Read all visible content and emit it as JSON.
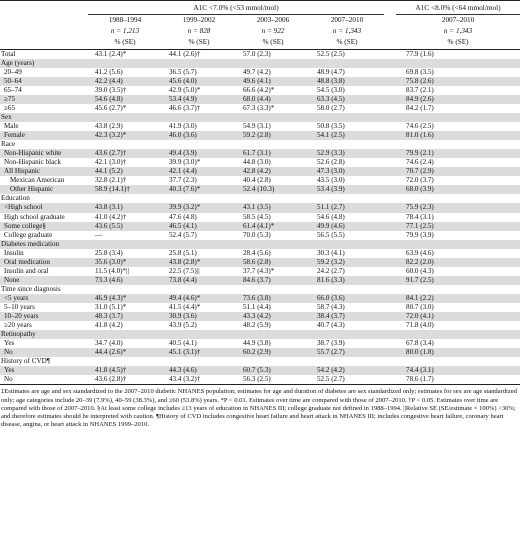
{
  "header": {
    "group1": "A1C <7.0% (<53 mmol/mol)",
    "group2": "A1C <8.0% (<64 mmol/mol)",
    "periods": [
      "1988–1994",
      "1999–2002",
      "2003–2006",
      "2007–2010",
      "2007–2010"
    ],
    "ns": [
      "n = 1,213",
      "n = 828",
      "n = 922",
      "n = 1,343",
      "n = 1,343"
    ],
    "unit": "% (SE)"
  },
  "rows": [
    {
      "type": "data",
      "label": "Total",
      "indent": 0,
      "shade": false,
      "v": [
        "43.1 (2.4)*",
        "44.1 (2.6)†",
        "57.0 (2.3)",
        "52.5 (2.5)",
        "77.9 (1.6)"
      ]
    },
    {
      "type": "section",
      "label": "Age (years)",
      "shade": true
    },
    {
      "type": "data",
      "label": "20–49",
      "indent": 1,
      "shade": false,
      "v": [
        "41.2 (5.6)",
        "36.5 (5.7)",
        "49.7 (4.2)",
        "48.9 (4.7)",
        "69.8 (3.5)"
      ]
    },
    {
      "type": "data",
      "label": "50–64",
      "indent": 1,
      "shade": true,
      "v": [
        "42.2 (4.4)",
        "45.6 (4.0)",
        "49.6 (4.1)",
        "48.8 (3.8)",
        "75.8 (2.6)"
      ]
    },
    {
      "type": "data",
      "label": "65–74",
      "indent": 1,
      "shade": false,
      "v": [
        "39.0 (3.5)†",
        "42.9 (5.0)*",
        "66.6 (4.2)*",
        "54.5 (3.0)",
        "83.7 (2.1)"
      ]
    },
    {
      "type": "data",
      "label": "≥75",
      "indent": 1,
      "shade": true,
      "v": [
        "54.6 (4.8)",
        "53.4 (4.9)",
        "68.0 (4.4)",
        "63.3 (4.5)",
        "84.9 (2.6)"
      ]
    },
    {
      "type": "data",
      "label": "≥65",
      "indent": 1,
      "shade": false,
      "v": [
        "45.6 (2.7)*",
        "46.6 (3.7)†",
        "67.3 (3.3)*",
        "58.0 (2.7)",
        "84.2 (1.7)"
      ]
    },
    {
      "type": "section",
      "label": "Sex",
      "shade": true
    },
    {
      "type": "data",
      "label": "Male",
      "indent": 1,
      "shade": false,
      "v": [
        "43.8 (2.9)",
        "41.9 (3.0)",
        "54.9 (3.1)",
        "50.8 (3.5)",
        "74.6 (2.5)"
      ]
    },
    {
      "type": "data",
      "label": "Female",
      "indent": 1,
      "shade": true,
      "v": [
        "42.3 (3.2)*",
        "46.0 (3.6)",
        "59.2 (2.8)",
        "54.1 (2.5)",
        "81.0 (1.6)"
      ]
    },
    {
      "type": "section",
      "label": "Race",
      "shade": false
    },
    {
      "type": "data",
      "label": "Non-Hispanic white",
      "indent": 1,
      "shade": true,
      "v": [
        "43.6 (2.7)†",
        "49.4 (3.9)",
        "61.7 (3.1)",
        "52.9 (3.3)",
        "79.9 (2.1)"
      ]
    },
    {
      "type": "data",
      "label": "Non-Hispanic black",
      "indent": 1,
      "shade": false,
      "v": [
        "42.1 (3.0)†",
        "39.9 (3.0)*",
        "44.8 (3.0)",
        "52.6 (2.8)",
        "74.6 (2.4)"
      ]
    },
    {
      "type": "data",
      "label": "All Hispanic",
      "indent": 1,
      "shade": true,
      "v": [
        "44.1 (5.2)",
        "42.1 (4.4)",
        "42.8 (4.2)",
        "47.3 (3.0)",
        "70.7 (2.9)"
      ]
    },
    {
      "type": "data",
      "label": "Mexican American",
      "indent": 2,
      "shade": false,
      "v": [
        "32.8 (2.1)†",
        "37.7 (2.3)",
        "40.4 (2.8)",
        "43.5 (3.0)",
        "72.0 (3.7)"
      ]
    },
    {
      "type": "data",
      "label": "Other Hispanic",
      "indent": 2,
      "shade": true,
      "v": [
        "58.9 (14.1)†",
        "40.3 (7.6)*",
        "52.4 (10.3)",
        "53.4 (3.9)",
        "68.0 (3.9)"
      ]
    },
    {
      "type": "section",
      "label": "Education",
      "shade": false
    },
    {
      "type": "data",
      "label": "<High school",
      "indent": 1,
      "shade": true,
      "v": [
        "43.8 (3.1)",
        "39.9 (3.2)*",
        "43.1 (3.5)",
        "51.1 (2.7)",
        "75.9 (2.3)"
      ]
    },
    {
      "type": "data",
      "label": "High school graduate",
      "indent": 1,
      "shade": false,
      "v": [
        "41.0 (4.2)†",
        "47.6 (4.8)",
        "58.5 (4.5)",
        "54.6 (4.8)",
        "78.4 (3.1)"
      ]
    },
    {
      "type": "data",
      "label": "Some college§",
      "indent": 1,
      "shade": true,
      "v": [
        "43.6 (5.5)",
        "46.5 (4.1)",
        "61.4 (4.1)*",
        "49.9 (4.6)",
        "77.1 (2.5)"
      ]
    },
    {
      "type": "data",
      "label": "College graduate",
      "indent": 1,
      "shade": false,
      "v": [
        "—",
        "52.4 (5.7)",
        "70.0 (5.3)",
        "56.5 (5.5)",
        "79.9 (3.9)"
      ]
    },
    {
      "type": "section",
      "label": "Diabetes medication",
      "shade": true
    },
    {
      "type": "data",
      "label": "Insulin",
      "indent": 1,
      "shade": false,
      "v": [
        "25.8 (3.4)",
        "25.8 (5.1)",
        "28.4 (5.6)",
        "30.3 (4.1)",
        "63.9 (4.6)"
      ]
    },
    {
      "type": "data",
      "label": "Oral medication",
      "indent": 1,
      "shade": true,
      "v": [
        "35.6 (3.0)*",
        "43.8 (2.8)*",
        "58.6 (2.8)",
        "59.2 (3.2)",
        "82.2 (2.0)"
      ]
    },
    {
      "type": "data",
      "label": "Insulin and oral",
      "indent": 1,
      "shade": false,
      "v": [
        "11.5 (4.0)*||",
        "22.5 (7.5)||",
        "37.7 (4.3)*",
        "24.2 (2.7)",
        "60.0 (4.3)"
      ]
    },
    {
      "type": "data",
      "label": "None",
      "indent": 1,
      "shade": true,
      "v": [
        "73.3 (4.6)",
        "73.8 (4.4)",
        "84.6 (3.7)",
        "81.6 (3.3)",
        "91.7 (2.5)"
      ]
    },
    {
      "type": "section",
      "label": "Time since diagnosis",
      "shade": false
    },
    {
      "type": "data",
      "label": "<5 years",
      "indent": 1,
      "shade": true,
      "v": [
        "46.9 (4.3)*",
        "49.4 (4.6)*",
        "73.6 (3.8)",
        "66.0 (3.6)",
        "84.1 (2.2)"
      ]
    },
    {
      "type": "data",
      "label": "5–10 years",
      "indent": 1,
      "shade": false,
      "v": [
        "31.0 (5.1)*",
        "41.5 (4.4)*",
        "51.1 (4.4)",
        "58.7 (4.3)",
        "80.7 (3.0)"
      ]
    },
    {
      "type": "data",
      "label": "10–20 years",
      "indent": 1,
      "shade": true,
      "v": [
        "48.3 (3.7)",
        "30.9 (3.6)",
        "43.3 (4.2)",
        "38.4 (3.7)",
        "72.0 (4.1)"
      ]
    },
    {
      "type": "data",
      "label": "≥20 years",
      "indent": 1,
      "shade": false,
      "v": [
        "41.8 (4.2)",
        "43.9 (5.2)",
        "48.2 (5.9)",
        "40.7 (4.3)",
        "71.8 (4.0)"
      ]
    },
    {
      "type": "section",
      "label": "Retinopathy",
      "shade": true
    },
    {
      "type": "data",
      "label": "Yes",
      "indent": 1,
      "shade": false,
      "v": [
        "34.7 (4.0)",
        "40.5 (4.1)",
        "44.9 (3.8)",
        "38.7 (3.9)",
        "67.8 (3.4)"
      ]
    },
    {
      "type": "data",
      "label": "No",
      "indent": 1,
      "shade": true,
      "v": [
        "44.4 (2.6)*",
        "45.1 (3.1)†",
        "60.2 (2.9)",
        "55.7 (2.7)",
        "80.0 (1.8)"
      ]
    },
    {
      "type": "section",
      "label": "History of CVD¶",
      "shade": false
    },
    {
      "type": "data",
      "label": "Yes",
      "indent": 1,
      "shade": true,
      "v": [
        "41.8 (4.5)†",
        "44.3 (4.6)",
        "60.7 (5.3)",
        "54.2 (4.2)",
        "74.4 (3.1)"
      ]
    },
    {
      "type": "data",
      "label": "No",
      "indent": 1,
      "shade": false,
      "v": [
        "43.6 (2.8)†",
        "43.4 (3.2)†",
        "56.3 (2.5)",
        "52.5 (2.7)",
        "78.6 (1.7)"
      ]
    }
  ],
  "footnote": "‡Estimates are age and sex standardized to the 2007–2010 diabetic NHANES population; estimates for age and duration of diabetes are sex standardized only; estimates for sex are age standardized only; age categories include 20–39 (7.9%), 40–59 (38.3%), and ≥60 (53.8%) years. *P < 0.01. Estimates over time are compared with those of 2007–2010. †P < 0.05. Estimates over time are compared with those of 2007–2010. §At least some college includes ≥13 years of education in NHANES III; college graduate not defined in 1988–1994. ||Relative SE (SE/estimate × 100%) >30%; and therefore estimates should be interpreted with caution. ¶History of CVD includes congestive heart failure and heart attack in NHANES III; includes congestive heart failure, coronary heart disease, angina, or heart attack in NHANES 1999–2010."
}
